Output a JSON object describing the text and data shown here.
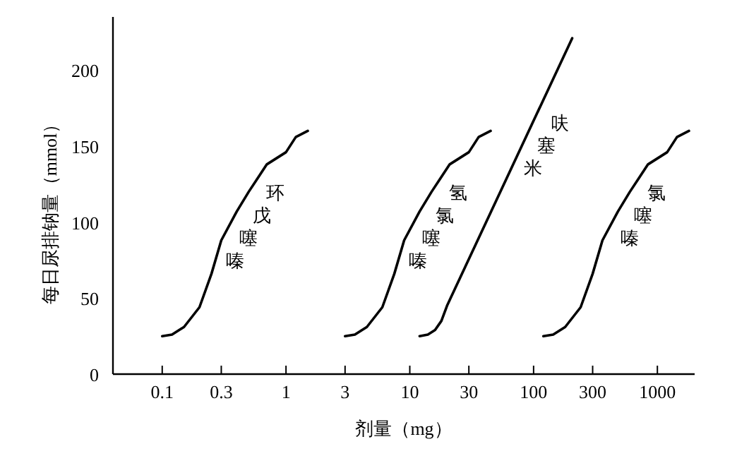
{
  "chart_data": {
    "type": "line",
    "xlabel": "剂量（mg）",
    "ylabel": "每日尿排钠量（mmol）",
    "log": "x",
    "xlim": [
      0.04,
      2000
    ],
    "ylim": [
      0,
      235
    ],
    "xticks": [
      0.1,
      0.3,
      1,
      3,
      10,
      30,
      100,
      300,
      1000
    ],
    "yticks": [
      0,
      50,
      100,
      150,
      200
    ],
    "series": [
      {
        "name": "环戊噻嗪",
        "color": "#000000",
        "x": [
          0.1,
          0.12,
          0.15,
          0.2,
          0.25,
          0.3,
          0.4,
          0.5,
          0.7,
          1,
          1.2,
          1.5
        ],
        "values": [
          25,
          26,
          31,
          44,
          66,
          88,
          107,
          120,
          138,
          146,
          156,
          160
        ]
      },
      {
        "name": "氢氯噻嗪",
        "color": "#000000",
        "x": [
          3,
          3.6,
          4.5,
          6,
          7.5,
          9,
          12,
          15,
          21,
          30,
          36,
          45
        ],
        "values": [
          25,
          26,
          31,
          44,
          66,
          88,
          107,
          120,
          138,
          146,
          156,
          160
        ]
      },
      {
        "name": "呋塞米",
        "color": "#000000",
        "x": [
          12,
          14,
          16,
          18,
          20,
          205
        ],
        "values": [
          25,
          26,
          29,
          35,
          45,
          221
        ]
      },
      {
        "name": "氯噻嗪",
        "color": "#000000",
        "x": [
          120,
          144,
          180,
          240,
          300,
          360,
          480,
          600,
          840,
          1200,
          1440,
          1800
        ],
        "values": [
          25,
          26,
          31,
          44,
          66,
          88,
          107,
          120,
          138,
          146,
          156,
          160
        ]
      }
    ]
  }
}
